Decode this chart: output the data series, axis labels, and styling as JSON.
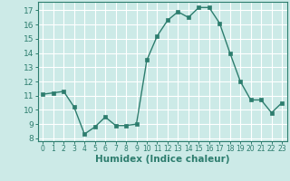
{
  "x": [
    0,
    1,
    2,
    3,
    4,
    5,
    6,
    7,
    8,
    9,
    10,
    11,
    12,
    13,
    14,
    15,
    16,
    17,
    18,
    19,
    20,
    21,
    22,
    23
  ],
  "y": [
    11.1,
    11.2,
    11.3,
    10.2,
    8.3,
    8.8,
    9.5,
    8.9,
    8.9,
    9.0,
    13.5,
    15.2,
    16.3,
    16.9,
    16.5,
    17.2,
    17.2,
    16.1,
    14.0,
    12.0,
    10.7,
    10.7,
    9.8,
    10.5
  ],
  "line_color": "#2d7d6e",
  "marker": "s",
  "marker_size": 2.5,
  "bg_color": "#cceae7",
  "grid_color": "#b0d8d4",
  "xlabel": "Humidex (Indice chaleur)",
  "ylim": [
    7.8,
    17.6
  ],
  "xlim": [
    -0.5,
    23.5
  ],
  "yticks": [
    8,
    9,
    10,
    11,
    12,
    13,
    14,
    15,
    16,
    17
  ],
  "xticks": [
    0,
    1,
    2,
    3,
    4,
    5,
    6,
    7,
    8,
    9,
    10,
    11,
    12,
    13,
    14,
    15,
    16,
    17,
    18,
    19,
    20,
    21,
    22,
    23
  ],
  "tick_fontsize": 6.5,
  "xlabel_fontsize": 7.5,
  "linewidth": 1.0
}
